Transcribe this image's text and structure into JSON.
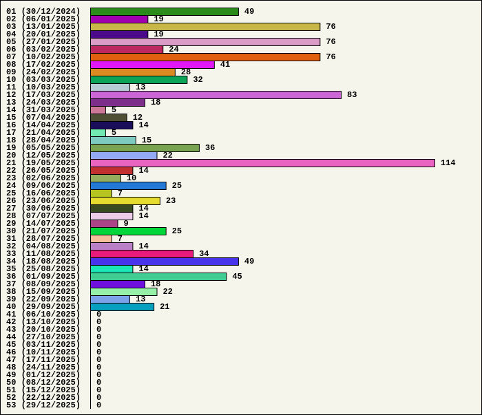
{
  "chart_data": {
    "type": "bar",
    "orientation": "horizontal",
    "categories": [
      "01 (30/12/2024)",
      "02 (06/01/2025)",
      "03 (13/01/2025)",
      "04 (20/01/2025)",
      "05 (27/01/2025)",
      "06 (03/02/2025)",
      "07 (10/02/2025)",
      "08 (17/02/2025)",
      "09 (24/02/2025)",
      "10 (03/03/2025)",
      "11 (10/03/2025)",
      "12 (17/03/2025)",
      "13 (24/03/2025)",
      "14 (31/03/2025)",
      "15 (07/04/2025)",
      "16 (14/04/2025)",
      "17 (21/04/2025)",
      "18 (28/04/2025)",
      "19 (05/05/2025)",
      "20 (12/05/2025)",
      "21 (19/05/2025)",
      "22 (26/05/2025)",
      "23 (02/06/2025)",
      "24 (09/06/2025)",
      "25 (16/06/2025)",
      "26 (23/06/2025)",
      "27 (30/06/2025)",
      "28 (07/07/2025)",
      "29 (14/07/2025)",
      "30 (21/07/2025)",
      "31 (28/07/2025)",
      "32 (04/08/2025)",
      "33 (11/08/2025)",
      "34 (18/08/2025)",
      "35 (25/08/2025)",
      "36 (01/09/2025)",
      "37 (08/09/2025)",
      "38 (15/09/2025)",
      "39 (22/09/2025)",
      "40 (29/09/2025)",
      "41 (06/10/2025)",
      "42 (13/10/2025)",
      "43 (20/10/2025)",
      "44 (27/10/2025)",
      "45 (03/11/2025)",
      "46 (10/11/2025)",
      "47 (17/11/2025)",
      "48 (24/11/2025)",
      "49 (01/12/2025)",
      "50 (08/12/2025)",
      "51 (15/12/2025)",
      "52 (22/12/2025)",
      "53 (29/12/2025)"
    ],
    "values": [
      49,
      19,
      76,
      19,
      76,
      24,
      76,
      41,
      28,
      32,
      13,
      83,
      18,
      5,
      12,
      14,
      5,
      15,
      36,
      22,
      114,
      14,
      10,
      25,
      7,
      23,
      14,
      14,
      9,
      25,
      7,
      14,
      34,
      49,
      14,
      45,
      18,
      22,
      13,
      21,
      0,
      0,
      0,
      0,
      0,
      0,
      0,
      0,
      0,
      0,
      0,
      0,
      0
    ],
    "colors": [
      "#2a8a1a",
      "#a000b0",
      "#c8b84a",
      "#4a0a8a",
      "#dc9cc8",
      "#be2860",
      "#e06010",
      "#e018f8",
      "#da8c22",
      "#0ca456",
      "#b8ccd4",
      "#cc66d6",
      "#7c2e8a",
      "#cc7896",
      "#4e4e34",
      "#1a0e5a",
      "#70eab0",
      "#7ecac0",
      "#7aa452",
      "#94aaf6",
      "#e864c0",
      "#c03030",
      "#94ae5e",
      "#2478d6",
      "#b6c422",
      "#e6dc30",
      "#3a4a20",
      "#eccce8",
      "#ac4488",
      "#00d63a",
      "#f6c09c",
      "#ba80c8",
      "#ea1a7a",
      "#4834ea",
      "#1ae6b6",
      "#40cc92",
      "#7010de",
      "#96f0a8",
      "#7ca2ea",
      "#08a0c0",
      "#888888",
      "#888888",
      "#888888",
      "#888888",
      "#888888",
      "#888888",
      "#888888",
      "#888888",
      "#888888",
      "#888888",
      "#888888",
      "#888888",
      "#888888"
    ],
    "title": "",
    "xlabel": "",
    "ylabel": "",
    "xlim": [
      0,
      114
    ],
    "grid": false,
    "legend": "none"
  }
}
